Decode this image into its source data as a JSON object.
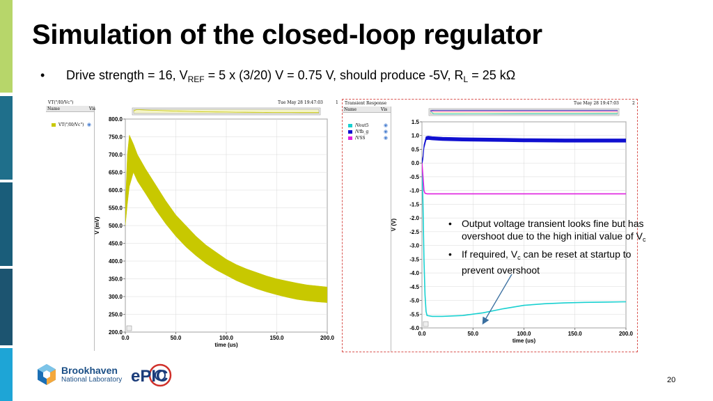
{
  "slide": {
    "title": "Simulation of the closed-loop regulator",
    "bullet_dot": "•",
    "bullet_parts": {
      "p1": "Drive strength = 16, V",
      "ref_sub": "REF",
      "p2": " = 5 x (3/20) V = 0.75 V, should produce -5V, R",
      "l_sub": "L",
      "p3": " = 25 kΩ"
    },
    "page_number": "20"
  },
  "left_panel": {
    "top_label": "VT(\"/I0/Vc\")",
    "date": "Tue May 28 19:47:03",
    "corner_digit": "1",
    "legend_header_name": "Name",
    "legend_header_vis": "Vis",
    "legend_items": [
      {
        "name": "VT(\"/I0/Vc\")",
        "color": "#c8c800"
      }
    ]
  },
  "right_panel": {
    "top_label": "Transient Response",
    "date": "Tue May 28 19:47:03",
    "corner_digit": "2",
    "legend_header_name": "Name",
    "legend_header_vis": "Vis",
    "legend_items": [
      {
        "name": "/Vout5",
        "color": "#18d0d0"
      },
      {
        "name": "/Vfb_g",
        "color": "#1010d0"
      },
      {
        "name": "/VSS",
        "color": "#e020e0"
      }
    ]
  },
  "chart_data": [
    {
      "type": "line",
      "title": "",
      "xlabel": "time (us)",
      "ylabel": "V (mV)",
      "xlim": [
        0,
        200
      ],
      "ylim": [
        200,
        800
      ],
      "x_ticks": [
        "0.0",
        "50.0",
        "100.0",
        "150.0",
        "200.0"
      ],
      "y_ticks": [
        "200.0",
        "250.0",
        "300.0",
        "350.0",
        "400.0",
        "450.0",
        "500.0",
        "550.0",
        "600.0",
        "650.0",
        "700.0",
        "750.0",
        "800.0"
      ],
      "series": [
        {
          "name": "VT(\"/I0/Vc\")",
          "color": "#c8c800",
          "x": [
            0,
            2,
            4,
            8,
            12,
            20,
            30,
            40,
            50,
            60,
            70,
            80,
            90,
            100,
            110,
            120,
            130,
            140,
            150,
            160,
            170,
            180,
            190,
            200
          ],
          "upper": [
            550,
            700,
            755,
            730,
            700,
            660,
            615,
            570,
            530,
            500,
            470,
            445,
            425,
            405,
            390,
            378,
            368,
            358,
            350,
            344,
            338,
            333,
            330,
            327
          ],
          "lower": [
            500,
            560,
            610,
            650,
            625,
            590,
            545,
            505,
            470,
            440,
            415,
            393,
            375,
            360,
            345,
            333,
            322,
            313,
            305,
            298,
            292,
            288,
            285,
            283
          ]
        }
      ]
    },
    {
      "type": "line",
      "title": "",
      "xlabel": "time (us)",
      "ylabel": "V (V)",
      "xlim": [
        0,
        200
      ],
      "ylim": [
        -6.0,
        1.5
      ],
      "x_ticks": [
        "0.0",
        "50.0",
        "100.0",
        "150.0",
        "200.0"
      ],
      "y_ticks": [
        "1.5",
        "1.0",
        "0.5",
        "0.0",
        "-0.5",
        "-1.0",
        "-1.5",
        "-2.0",
        "-2.5",
        "-3.0",
        "-3.5",
        "-4.0",
        "-4.5",
        "-5.0",
        "-5.5",
        "-6.0"
      ],
      "series": [
        {
          "name": "/Vout5",
          "color": "#18d0d0",
          "x": [
            0,
            1,
            2,
            3,
            4,
            5,
            10,
            20,
            40,
            60,
            80,
            100,
            120,
            140,
            160,
            180,
            200
          ],
          "y": [
            0.0,
            -1.5,
            -3.5,
            -4.8,
            -5.4,
            -5.55,
            -5.58,
            -5.58,
            -5.55,
            -5.45,
            -5.3,
            -5.18,
            -5.12,
            -5.09,
            -5.07,
            -5.06,
            -5.05
          ]
        },
        {
          "name": "/Vfb_g",
          "color": "#1010d0",
          "x": [
            0,
            1,
            2,
            4,
            6,
            10,
            20,
            40,
            60,
            80,
            100,
            140,
            200
          ],
          "y": [
            0.0,
            0.2,
            0.6,
            0.9,
            0.92,
            0.9,
            0.88,
            0.86,
            0.85,
            0.84,
            0.83,
            0.82,
            0.82
          ],
          "band": 0.12
        },
        {
          "name": "/VSS",
          "color": "#e020e0",
          "x": [
            0,
            1,
            2,
            3,
            5,
            10,
            50,
            100,
            150,
            200
          ],
          "y": [
            0.0,
            -0.5,
            -1.0,
            -1.1,
            -1.12,
            -1.12,
            -1.12,
            -1.12,
            -1.12,
            -1.12
          ]
        }
      ]
    }
  ],
  "callout": {
    "bullet_dot": "•",
    "item1_a": "Output voltage transient looks fine but has overshoot due to the high initial value of V",
    "item1_sub": "c",
    "item2_a": "If required, V",
    "item2_sub": "c",
    "item2_b": " can be reset at startup to prevent overshoot"
  },
  "logos": {
    "brand": "Brookhaven",
    "brand_sub": "National Laboratory",
    "epic": "ePIC"
  }
}
